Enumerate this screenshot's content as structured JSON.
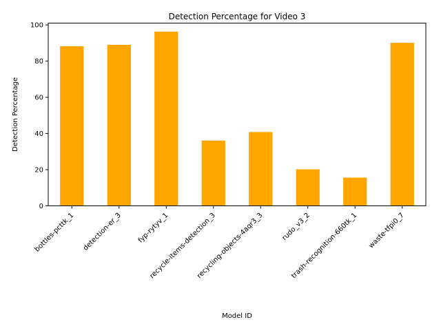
{
  "chart_data": {
    "type": "bar",
    "title": "Detection Percentage for Video 3",
    "xlabel": "Model ID",
    "ylabel": "Detection Percentage",
    "categories": [
      "bottles-pcttk_1",
      "detection-er_3",
      "fyp-rytyv_1",
      "recycle-items-detection_3",
      "recycling-objects-4aqr3_3",
      "rudo_v3_2",
      "trash-recognition-660tk_1",
      "waste-tfpi0_7"
    ],
    "values": [
      88.2,
      89.0,
      96.3,
      36.1,
      40.8,
      20.2,
      15.6,
      90.1
    ],
    "ylim": [
      0,
      101
    ],
    "yticks": [
      0,
      20,
      40,
      60,
      80,
      100
    ],
    "grid": false,
    "bar_color": "#FFA500"
  }
}
